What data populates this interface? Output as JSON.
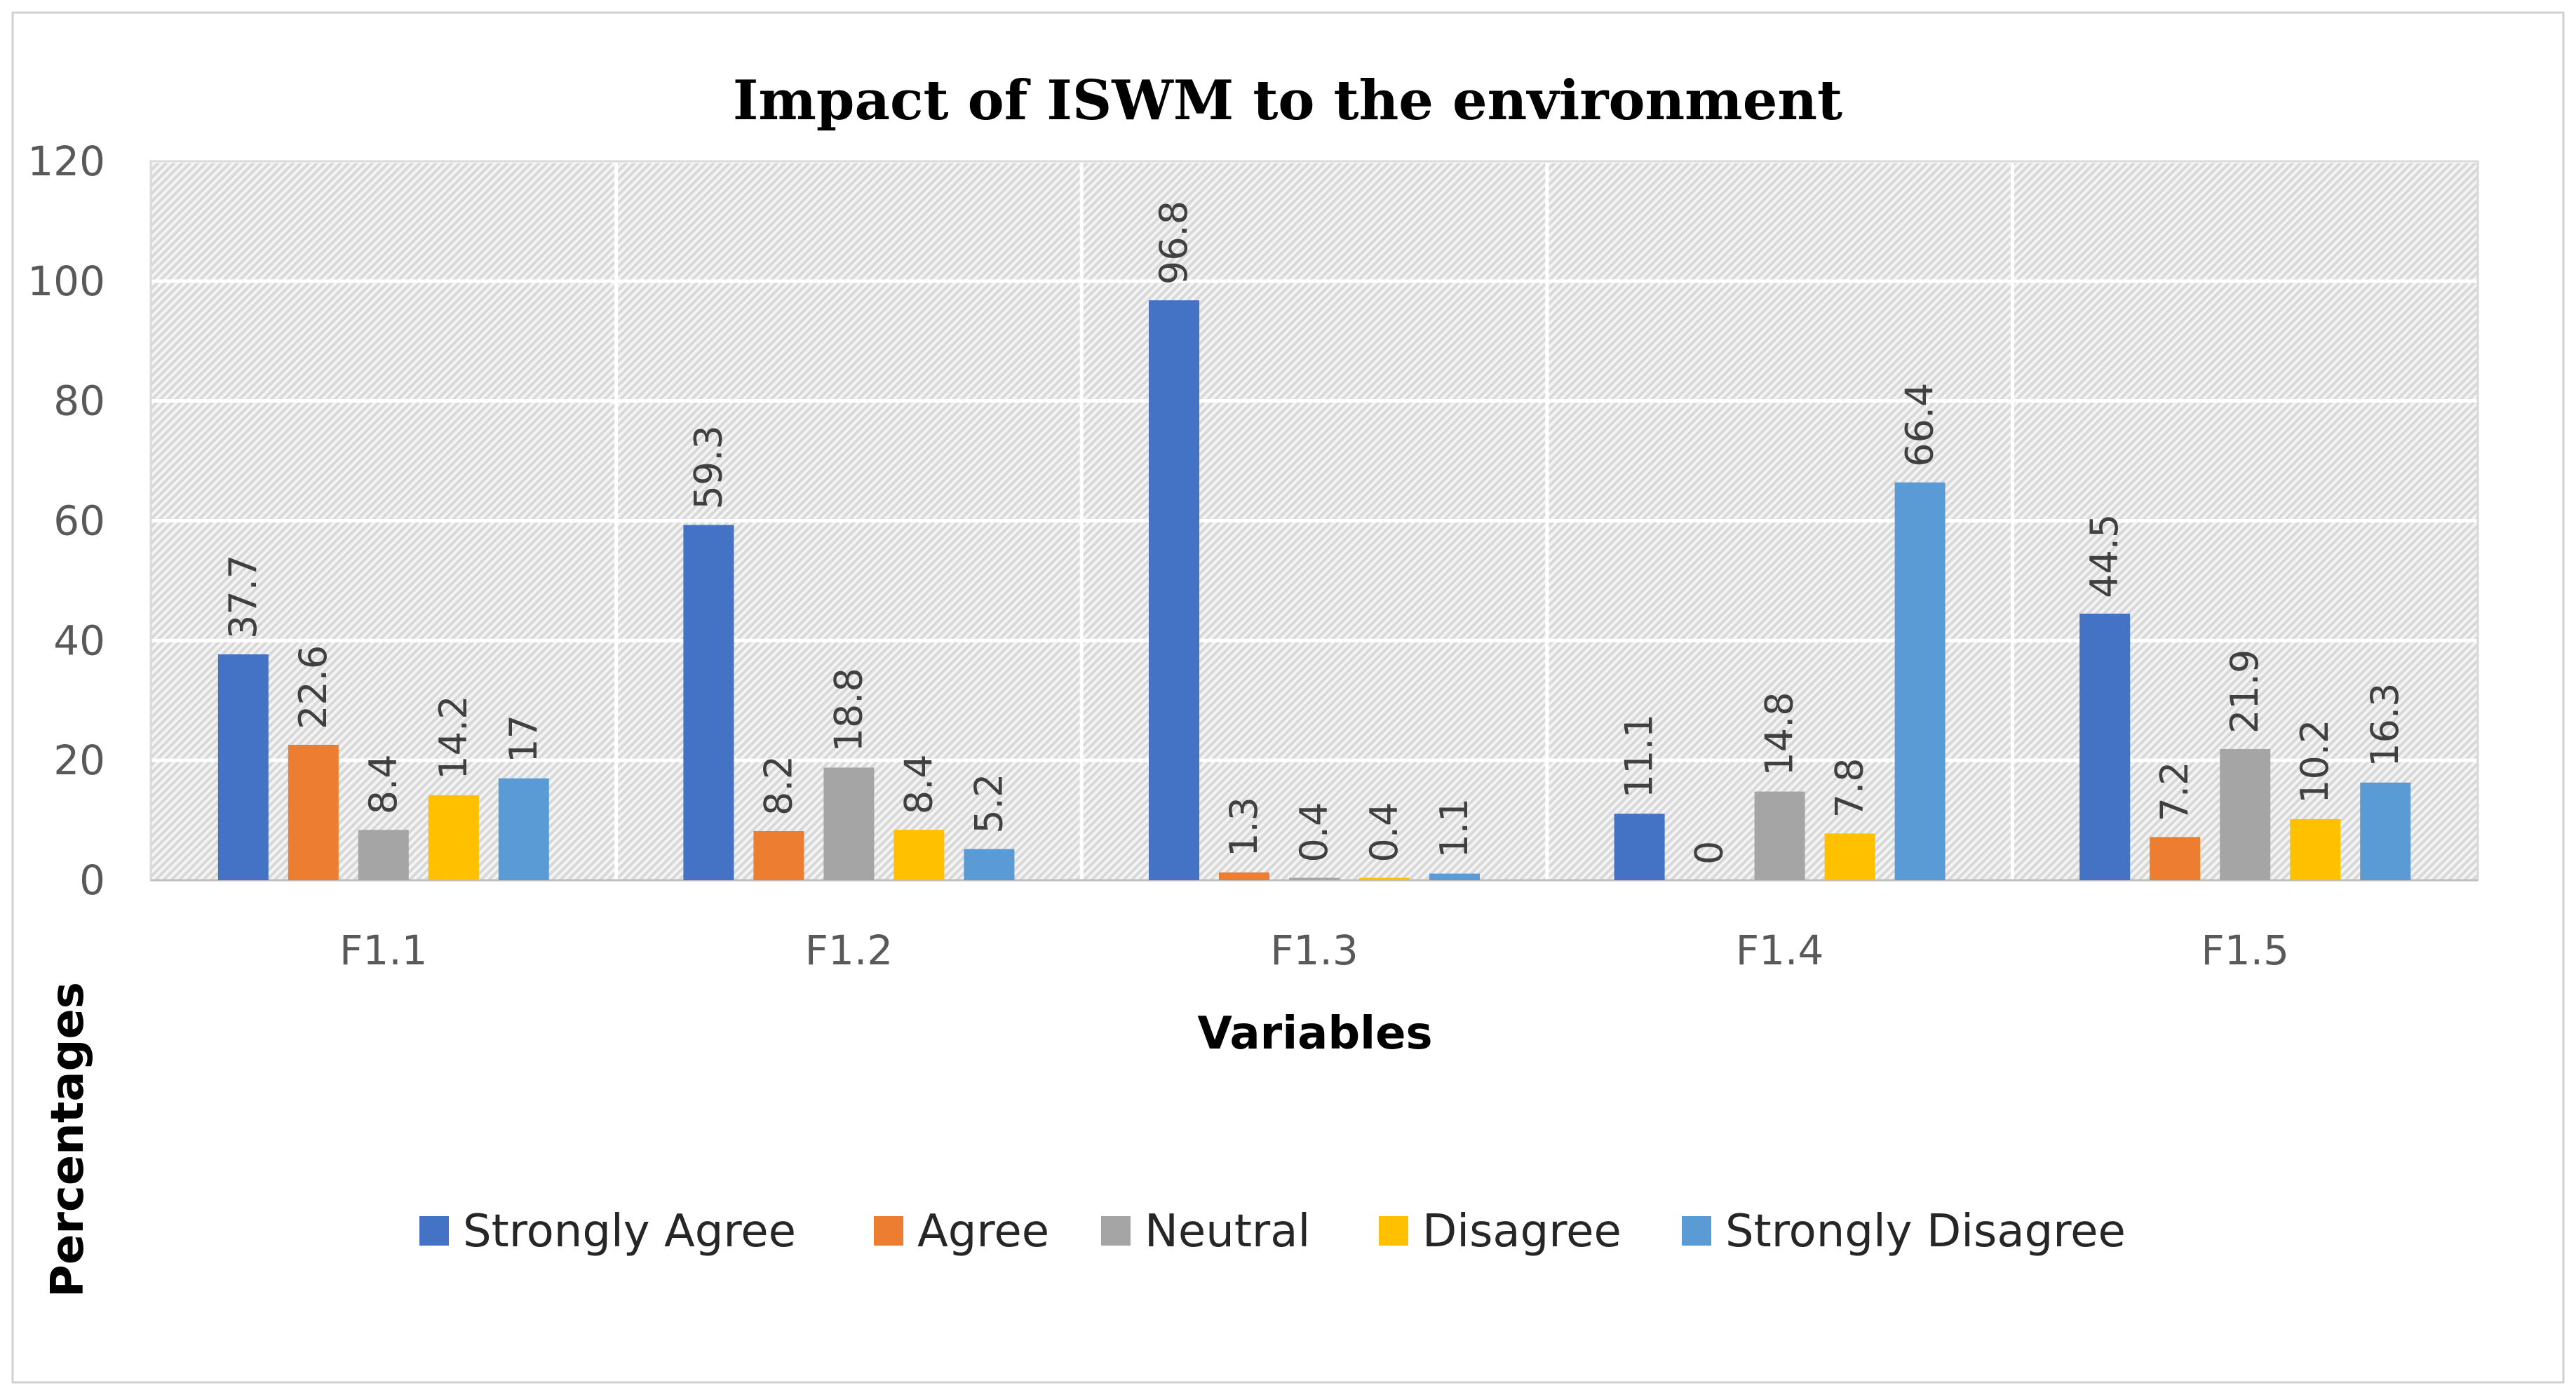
{
  "chart_data": {
    "type": "bar",
    "title": "Impact of ISWM to the environment",
    "xlabel": "Variables",
    "ylabel": "Percentages",
    "categories": [
      "F1.1",
      "F1.2",
      "F1.3",
      "F1.4",
      "F1.5"
    ],
    "ylim": [
      0,
      120
    ],
    "yticks": [
      0,
      20,
      40,
      60,
      80,
      100,
      120
    ],
    "grid": true,
    "legend_position": "bottom",
    "series": [
      {
        "name": "Strongly Agree",
        "color": "#4472C4",
        "values": [
          37.7,
          59.3,
          96.8,
          11.1,
          44.5
        ]
      },
      {
        "name": "Agree",
        "color": "#ED7D31",
        "values": [
          22.6,
          8.2,
          1.3,
          0,
          7.2
        ]
      },
      {
        "name": "Neutral",
        "color": "#A5A5A5",
        "values": [
          8.4,
          18.8,
          0.4,
          14.8,
          21.9
        ]
      },
      {
        "name": "Disagree",
        "color": "#FFC000",
        "values": [
          14.2,
          8.4,
          0.4,
          7.8,
          10.2
        ]
      },
      {
        "name": "Strongly Disagree",
        "color": "#5B9BD5",
        "values": [
          17,
          5.2,
          1.1,
          66.4,
          16.3
        ]
      }
    ]
  }
}
